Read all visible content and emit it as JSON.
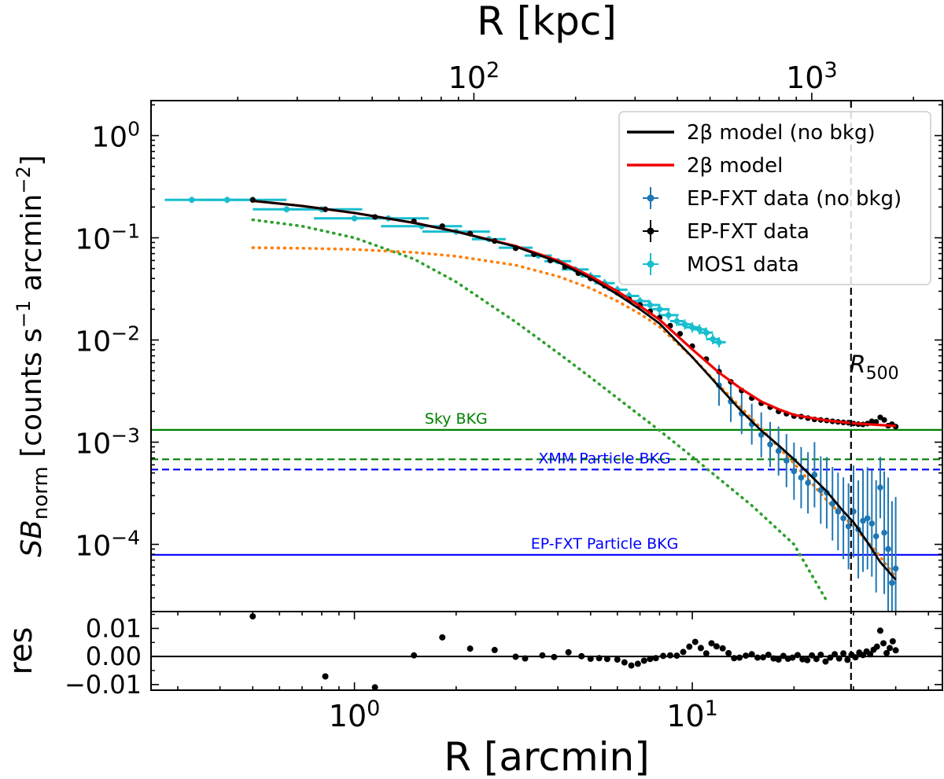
{
  "chart_data": {
    "type": "line",
    "scale": {
      "x": "log",
      "y": "log"
    },
    "top_axis": {
      "label": "R [kpc]",
      "ticks": [
        {
          "base": "10",
          "exp": "2",
          "value_kpc": 100
        },
        {
          "base": "10",
          "exp": "3",
          "value_kpc": 1000
        }
      ],
      "kpc_per_arcmin": 44.3
    },
    "main_panel": {
      "ylabel_parts": {
        "sb": "SB",
        "sub": "norm",
        "units_pre": "  [counts s",
        "units_mid": " arcmin",
        "exp1": "−1",
        "exp2": "−2",
        "units_post": "]"
      },
      "xlim": [
        0.25,
        55
      ],
      "ylim": [
        2.2e-05,
        2.2
      ],
      "yticks": [
        {
          "value": 1,
          "base": "10",
          "exp": "0"
        },
        {
          "value": 0.1,
          "base": "10",
          "exp": "−1"
        },
        {
          "value": 0.01,
          "base": "10",
          "exp": "−2"
        },
        {
          "value": 0.001,
          "base": "10",
          "exp": "−3"
        },
        {
          "value": 0.0001,
          "base": "10",
          "exp": "−4"
        }
      ],
      "r500": {
        "label_main": "R",
        "label_sub": "500",
        "x": 29.5
      },
      "hlines": [
        {
          "name": "sky-bkg",
          "label": "Sky BKG",
          "y": 0.00132,
          "color": "#008000",
          "style": "solid",
          "label_x": 2.0
        },
        {
          "name": "sky-bkg-dashed",
          "label": "",
          "y": 0.00068,
          "color": "#008000",
          "style": "dashed",
          "label_x": 0
        },
        {
          "name": "xmm-particle-bkg",
          "label": "XMM Particle BKG",
          "y": 0.00054,
          "color": "#0000ff",
          "style": "dashed",
          "label_x": 5.5
        },
        {
          "name": "ep-fxt-particle-bkg",
          "label": "EP-FXT Particle BKG",
          "y": 7.9e-05,
          "color": "#0000ff",
          "style": "solid",
          "label_x": 5.5
        }
      ],
      "series": [
        {
          "name": "2β model (no bkg)",
          "kind": "line",
          "color": "#000000",
          "x": [
            0.5,
            0.7,
            1.0,
            1.5,
            2.0,
            3.0,
            4.0,
            5.0,
            6.0,
            7.0,
            8.0,
            10.0,
            12.0,
            14.0,
            16.0,
            18.0,
            20.0,
            22.0,
            25.0,
            28.0,
            30.0,
            33.0,
            36.0,
            40.0
          ],
          "y": [
            0.23,
            0.205,
            0.175,
            0.14,
            0.115,
            0.082,
            0.058,
            0.04,
            0.028,
            0.02,
            0.0145,
            0.0068,
            0.0035,
            0.002,
            0.0013,
            0.00093,
            0.00068,
            0.0005,
            0.00033,
            0.00021,
            0.000165,
            0.000105,
            6.7e-05,
            4.5e-05
          ]
        },
        {
          "name": "2β model",
          "kind": "line",
          "color": "#ee0000",
          "x": [
            0.5,
            0.7,
            1.0,
            1.5,
            2.0,
            3.0,
            4.0,
            5.0,
            6.0,
            7.0,
            8.0,
            10.0,
            12.0,
            14.0,
            16.0,
            18.0,
            20.0,
            25.0,
            30.0,
            35.0,
            40.0
          ],
          "y": [
            0.23,
            0.205,
            0.175,
            0.14,
            0.115,
            0.083,
            0.06,
            0.042,
            0.03,
            0.0215,
            0.0158,
            0.0081,
            0.0048,
            0.0033,
            0.0025,
            0.0021,
            0.00185,
            0.00163,
            0.00153,
            0.00148,
            0.00144
          ]
        },
        {
          "name": "beta-component-inner",
          "kind": "dotted",
          "color": "#2ca02c",
          "x": [
            0.5,
            0.7,
            1.0,
            1.5,
            2.0,
            3.0,
            4.0,
            5.0,
            6.0,
            8.0,
            10.0,
            12.0,
            15.0,
            20.0,
            25.0
          ],
          "y": [
            0.15,
            0.13,
            0.1,
            0.062,
            0.037,
            0.015,
            0.0075,
            0.0043,
            0.0027,
            0.0013,
            0.00072,
            0.00044,
            0.00024,
            0.0001,
            2.8e-05
          ]
        },
        {
          "name": "beta-component-outer",
          "kind": "dotted",
          "color": "#ff7f0e",
          "x": [
            0.5,
            0.7,
            1.0,
            1.5,
            2.0,
            3.0,
            4.0,
            5.0,
            6.0,
            7.0,
            8.0,
            10.0,
            12.0,
            15.0,
            20.0,
            25.0,
            30.0,
            35.0,
            40.0
          ],
          "y": [
            0.08,
            0.079,
            0.077,
            0.072,
            0.066,
            0.054,
            0.042,
            0.032,
            0.024,
            0.018,
            0.0135,
            0.0068,
            0.0036,
            0.0017,
            0.00062,
            0.00027,
            0.00015,
            8.5e-05,
            4.8e-05
          ]
        },
        {
          "name": "EP-FXT data",
          "kind": "points",
          "color": "#000000",
          "x": [
            0.5,
            0.82,
            1.15,
            1.5,
            1.82,
            2.2,
            2.6,
            3.0,
            3.4,
            3.8,
            4.2,
            4.6,
            5.0,
            5.5,
            6.0,
            6.5,
            7.0,
            7.5,
            8.0,
            8.6,
            9.2,
            10.0,
            11.0,
            12.0,
            13.0,
            14.0,
            15.0,
            16.0,
            17.0,
            18.0,
            19.0,
            20.0,
            21.0,
            22.0,
            23.0,
            24.0,
            25.0,
            26.0,
            27.0,
            28.0,
            29.0,
            30.0,
            31.0,
            32.0,
            33.0,
            34.0,
            35.0,
            36.0,
            37.0,
            38.0,
            39.0,
            40.0
          ],
          "y": [
            0.235,
            0.19,
            0.16,
            0.145,
            0.13,
            0.11,
            0.093,
            0.079,
            0.069,
            0.06,
            0.052,
            0.045,
            0.04,
            0.034,
            0.029,
            0.025,
            0.022,
            0.019,
            0.0165,
            0.0138,
            0.0115,
            0.0087,
            0.0065,
            0.0049,
            0.0039,
            0.0032,
            0.0027,
            0.0024,
            0.0022,
            0.002,
            0.0019,
            0.0018,
            0.00178,
            0.00172,
            0.00167,
            0.00165,
            0.00163,
            0.0016,
            0.00158,
            0.00156,
            0.00155,
            0.00152,
            0.0015,
            0.00149,
            0.00152,
            0.0016,
            0.00158,
            0.00175,
            0.00165,
            0.00145,
            0.0015,
            0.00142
          ]
        },
        {
          "name": "EP-FXT data (no bkg)",
          "kind": "errpoints",
          "color": "#1f77b4",
          "x": [
            12.0,
            13.0,
            14.0,
            15.0,
            16.0,
            17.0,
            18.0,
            19.0,
            20.0,
            21.0,
            22.0,
            23.0,
            24.0,
            25.0,
            26.0,
            27.0,
            28.0,
            29.0,
            30.0,
            31.0,
            32.0,
            33.0,
            34.0,
            35.0,
            36.0,
            37.0,
            38.0,
            39.0,
            40.0
          ],
          "y": [
            0.0036,
            0.0025,
            0.0019,
            0.0015,
            0.00118,
            0.00095,
            0.00082,
            0.00066,
            0.00052,
            0.00045,
            0.0004,
            0.00048,
            0.00034,
            0.00032,
            0.00025,
            0.00021,
            0.00018,
            0.00015,
            0.00021,
            0.00014,
            0.00017,
            0.00018,
            0.00016,
            0.00012,
            0.00036,
            0.00013,
            9e-05,
            4.2e-05,
            5.8e-05
          ],
          "err": [
            0.2,
            0.2,
            0.2,
            0.2,
            0.22,
            0.22,
            0.24,
            0.26,
            0.28,
            0.3,
            0.3,
            0.32,
            0.33,
            0.35,
            0.36,
            0.38,
            0.4,
            0.42,
            0.45,
            0.48,
            0.5,
            0.5,
            0.52,
            0.55,
            0.3,
            0.6,
            0.7,
            0.8,
            0.7
          ]
        },
        {
          "name": "MOS1 data",
          "kind": "errpoints",
          "color": "#17becf",
          "x": [
            0.33,
            0.42,
            0.5,
            0.63,
            0.8,
            1.0,
            1.26,
            1.58,
            2.0,
            2.5,
            3.0,
            3.5,
            4.0,
            4.5,
            5.0,
            5.5,
            6.0,
            6.5,
            7.0,
            7.5,
            8.0,
            8.5,
            9.0,
            9.5,
            10.0,
            10.5,
            11.0,
            11.5,
            12.0
          ],
          "y": [
            0.235,
            0.235,
            0.235,
            0.19,
            0.19,
            0.155,
            0.155,
            0.13,
            0.115,
            0.097,
            0.08,
            0.067,
            0.059,
            0.049,
            0.042,
            0.036,
            0.031,
            0.027,
            0.024,
            0.022,
            0.02,
            0.0175,
            0.0153,
            0.0142,
            0.0133,
            0.0127,
            0.0118,
            0.0102,
            0.0095
          ],
          "err": [
            0.03,
            0.03,
            0.03,
            0.03,
            0.03,
            0.03,
            0.03,
            0.03,
            0.03,
            0.03,
            0.03,
            0.03,
            0.03,
            0.03,
            0.04,
            0.04,
            0.04,
            0.04,
            0.04,
            0.04,
            0.05,
            0.05,
            0.05,
            0.05,
            0.05,
            0.05,
            0.05,
            0.05,
            0.05
          ],
          "xwidth": [
            0.08,
            0.08,
            0.1,
            0.1,
            0.12,
            0.12,
            0.12,
            0.12,
            0.1,
            0.05,
            0.05,
            0.04,
            0.04,
            0.04,
            0.03,
            0.03,
            0.03,
            0.03,
            0.03,
            0.03,
            0.03,
            0.03,
            0.02,
            0.02,
            0.02,
            0.02,
            0.02,
            0.02,
            0.02
          ]
        }
      ],
      "legend": {
        "placement": "top-right",
        "entries": [
          {
            "label": "2β model (no bkg)",
            "color": "#000000",
            "marker": "line"
          },
          {
            "label": "2β model",
            "color": "#ee0000",
            "marker": "line"
          },
          {
            "label": "EP-FXT data (no bkg)",
            "color": "#1f77b4",
            "marker": "errpoint"
          },
          {
            "label": "EP-FXT data",
            "color": "#000000",
            "marker": "errpoint"
          },
          {
            "label": "MOS1 data",
            "color": "#17becf",
            "marker": "errpoint"
          }
        ]
      }
    },
    "residual_panel": {
      "ylabel": "res",
      "ylim": [
        -0.012,
        0.016
      ],
      "yticks": [
        {
          "value": 0.01,
          "label": "0.01"
        },
        {
          "value": 0.0,
          "label": "0.00"
        },
        {
          "value": -0.01,
          "label": "−0.01"
        }
      ],
      "zero_line": 0.0,
      "points": {
        "x": [
          0.5,
          0.82,
          1.15,
          1.5,
          1.82,
          2.2,
          2.6,
          3.0,
          3.2,
          3.6,
          3.9,
          4.3,
          4.7,
          5.0,
          5.3,
          5.6,
          6.0,
          6.3,
          6.6,
          6.9,
          7.2,
          7.5,
          7.8,
          8.2,
          8.6,
          9.0,
          9.4,
          9.8,
          10.2,
          10.6,
          11.0,
          11.4,
          11.8,
          12.3,
          12.8,
          13.3,
          13.8,
          14.4,
          15.0,
          15.6,
          16.2,
          16.8,
          17.4,
          18.0,
          18.6,
          19.2,
          19.8,
          20.5,
          21.2,
          21.9,
          22.6,
          23.3,
          24.0,
          24.8,
          25.6,
          26.4,
          27.2,
          28.0,
          28.8,
          29.6,
          30.4,
          31.2,
          32.0,
          32.8,
          33.6,
          34.4,
          35.2,
          36.0,
          36.8,
          37.6,
          38.4,
          39.2,
          40.0
        ],
        "y": [
          0.0143,
          -0.0071,
          -0.011,
          0.0004,
          0.0068,
          0.0028,
          0.0023,
          -0.0001,
          -0.0007,
          0.0004,
          -0.0002,
          0.0015,
          0.0001,
          -0.0008,
          -0.0006,
          -0.0009,
          -0.0011,
          -0.0021,
          -0.0032,
          -0.0026,
          -0.0015,
          -0.0009,
          -0.0006,
          0.0002,
          0.0004,
          0.0003,
          0.0016,
          0.0035,
          0.0052,
          0.003,
          0.0011,
          0.0047,
          0.0036,
          0.0029,
          0.0012,
          -0.0006,
          -0.0004,
          0.0003,
          0.0008,
          -0.0004,
          -0.0003,
          0.0006,
          -0.0007,
          -0.0011,
          0.0002,
          -0.0008,
          -0.0004,
          0.0005,
          -0.001,
          -0.0013,
          0.0004,
          -0.0009,
          0.0006,
          -0.0018,
          -0.0004,
          0.0008,
          -0.0007,
          0.0011,
          -0.0012,
          0.0006,
          -0.0003,
          0.0014,
          0.0005,
          0.0018,
          0.0008,
          0.0024,
          0.0035,
          0.0092,
          0.0047,
          0.0012,
          0.003,
          0.0054,
          0.0022
        ]
      }
    },
    "bottom_axis": {
      "label": "R [arcmin]",
      "ticks": [
        {
          "value": 1,
          "base": "10",
          "exp": "0"
        },
        {
          "value": 10,
          "base": "10",
          "exp": "1"
        }
      ]
    }
  }
}
